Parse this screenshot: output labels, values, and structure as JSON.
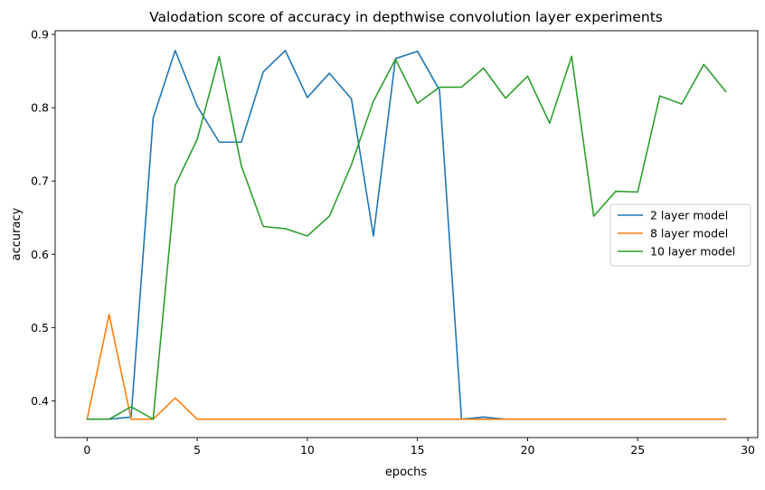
{
  "chart_data": {
    "type": "line",
    "title": "Valodation score of accuracy in depthwise convolution layer experiments",
    "xlabel": "epochs",
    "ylabel": "accuracy",
    "xlim": [
      -1.45,
      30.45
    ],
    "ylim": [
      0.35,
      0.905
    ],
    "xticks": [
      0,
      5,
      10,
      15,
      20,
      25,
      30
    ],
    "yticks": [
      0.4,
      0.5,
      0.6,
      0.7,
      0.8,
      0.9
    ],
    "grid": false,
    "legend_position": "center-right",
    "x": [
      0,
      1,
      2,
      3,
      4,
      5,
      6,
      7,
      8,
      9,
      10,
      11,
      12,
      13,
      14,
      15,
      16,
      17,
      18,
      19,
      20,
      21,
      22,
      23,
      24,
      25,
      26,
      27,
      28,
      29
    ],
    "series": [
      {
        "name": "2 layer model",
        "color": "#1f77b4",
        "values": [
          0.375,
          0.375,
          0.378,
          0.786,
          0.878,
          0.802,
          0.753,
          0.753,
          0.849,
          0.878,
          0.814,
          0.847,
          0.812,
          0.625,
          0.867,
          0.877,
          0.824,
          0.375,
          0.378,
          0.375,
          0.375,
          0.375,
          0.375,
          0.375,
          0.375,
          0.375,
          0.375,
          0.375,
          0.375,
          0.375
        ]
      },
      {
        "name": "8 layer model",
        "color": "#ff7f0e",
        "values": [
          0.375,
          0.518,
          0.375,
          0.375,
          0.404,
          0.375,
          0.375,
          0.375,
          0.375,
          0.375,
          0.375,
          0.375,
          0.375,
          0.375,
          0.375,
          0.375,
          0.375,
          0.375,
          0.375,
          0.375,
          0.375,
          0.375,
          0.375,
          0.375,
          0.375,
          0.375,
          0.375,
          0.375,
          0.375,
          0.375
        ]
      },
      {
        "name": "10 layer model",
        "color": "#2ca02c",
        "values": [
          0.375,
          0.375,
          0.392,
          0.375,
          0.694,
          0.757,
          0.87,
          0.721,
          0.638,
          0.635,
          0.625,
          0.652,
          0.722,
          0.809,
          0.866,
          0.806,
          0.828,
          0.828,
          0.854,
          0.813,
          0.843,
          0.779,
          0.87,
          0.652,
          0.686,
          0.685,
          0.816,
          0.805,
          0.859,
          0.822
        ]
      }
    ]
  }
}
